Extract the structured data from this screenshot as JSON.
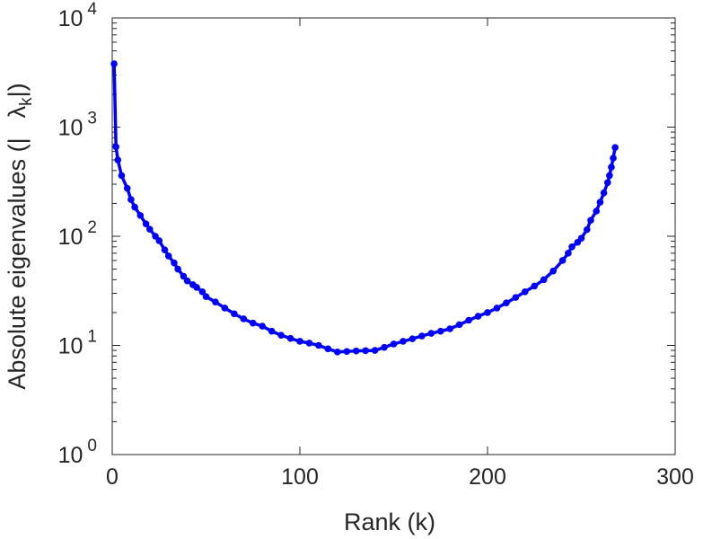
{
  "chart_data": {
    "type": "line",
    "title": "",
    "xlabel": "Rank (k)",
    "ylabel": {
      "prefix": "Absolute eigenvalues (|",
      "symbol": "λ",
      "subscript": "k",
      "suffix": "|)"
    },
    "xlim": [
      0,
      300
    ],
    "ylim": [
      1,
      10000
    ],
    "yscale": "log",
    "xticks": [
      0,
      100,
      200,
      300
    ],
    "xtick_labels": [
      "0",
      "100",
      "200",
      "300"
    ],
    "yticks": [
      1,
      10,
      100,
      1000,
      10000
    ],
    "ytick_labels": [
      {
        "base": "10",
        "exp": "0"
      },
      {
        "base": "10",
        "exp": "1"
      },
      {
        "base": "10",
        "exp": "2"
      },
      {
        "base": "10",
        "exp": "3"
      },
      {
        "base": "10",
        "exp": "4"
      }
    ],
    "grid": false,
    "series": [
      {
        "name": "|λk|",
        "color": "#0000ff",
        "marker": "circle",
        "points": [
          [
            1,
            3800
          ],
          [
            2,
            660
          ],
          [
            3,
            500
          ],
          [
            5,
            360
          ],
          [
            8,
            275
          ],
          [
            10,
            217
          ],
          [
            12,
            185
          ],
          [
            15,
            155
          ],
          [
            18,
            130
          ],
          [
            20,
            116
          ],
          [
            23,
            100
          ],
          [
            25,
            91
          ],
          [
            28,
            75
          ],
          [
            30,
            66
          ],
          [
            33,
            57
          ],
          [
            35,
            50
          ],
          [
            38,
            43
          ],
          [
            40,
            39
          ],
          [
            43,
            36
          ],
          [
            45,
            34
          ],
          [
            48,
            31
          ],
          [
            50,
            28
          ],
          [
            55,
            25
          ],
          [
            60,
            22
          ],
          [
            65,
            19.5
          ],
          [
            70,
            17.5
          ],
          [
            75,
            16
          ],
          [
            80,
            15
          ],
          [
            85,
            13.5
          ],
          [
            90,
            12.4
          ],
          [
            95,
            11.6
          ],
          [
            100,
            10.9
          ],
          [
            105,
            10.5
          ],
          [
            110,
            10
          ],
          [
            115,
            9.3
          ],
          [
            120,
            8.7
          ],
          [
            125,
            8.8
          ],
          [
            130,
            8.9
          ],
          [
            135,
            8.95
          ],
          [
            140,
            9.0
          ],
          [
            145,
            9.6
          ],
          [
            150,
            10.3
          ],
          [
            155,
            10.9
          ],
          [
            160,
            11.5
          ],
          [
            165,
            12.2
          ],
          [
            170,
            12.9
          ],
          [
            175,
            13.5
          ],
          [
            180,
            14.2
          ],
          [
            185,
            15.5
          ],
          [
            190,
            17
          ],
          [
            195,
            18.5
          ],
          [
            200,
            20
          ],
          [
            205,
            22
          ],
          [
            210,
            24.5
          ],
          [
            215,
            27.5
          ],
          [
            220,
            31
          ],
          [
            225,
            35
          ],
          [
            230,
            40
          ],
          [
            235,
            48
          ],
          [
            240,
            60
          ],
          [
            243,
            70
          ],
          [
            245,
            80
          ],
          [
            248,
            88
          ],
          [
            250,
            96
          ],
          [
            253,
            115
          ],
          [
            255,
            140
          ],
          [
            258,
            170
          ],
          [
            260,
            205
          ],
          [
            262,
            250
          ],
          [
            264,
            310
          ],
          [
            265,
            360
          ],
          [
            266,
            430
          ],
          [
            267,
            520
          ],
          [
            268,
            650
          ]
        ]
      }
    ]
  }
}
